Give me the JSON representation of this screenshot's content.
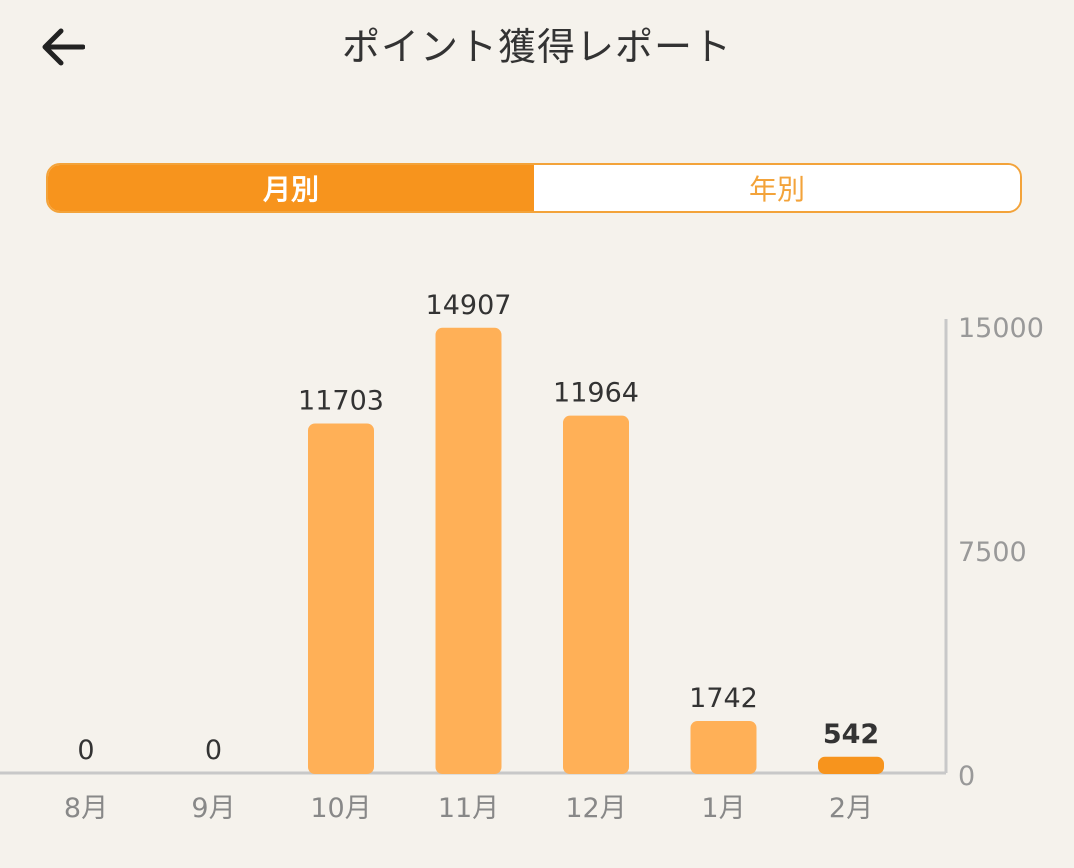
{
  "header": {
    "title": "ポイント獲得レポート",
    "back_icon": "arrow-left-icon"
  },
  "toggle": {
    "monthly_label": "月別",
    "yearly_label": "年別",
    "selected": "monthly"
  },
  "colors": {
    "background": "#f5f2ec",
    "bar": "#ffb057",
    "bar_highlight": "#f7941d",
    "axis": "#c8c8c8",
    "accent": "#f7941d"
  },
  "chart_data": {
    "type": "bar",
    "categories": [
      "8月",
      "9月",
      "10月",
      "11月",
      "12月",
      "1月",
      "2月"
    ],
    "values": [
      0,
      0,
      11703,
      14907,
      11964,
      1742,
      542
    ],
    "highlight_index": 6,
    "y_ticks": [
      "15000",
      "7500",
      "0"
    ],
    "ylim": [
      0,
      15000
    ],
    "y_axis_position": "right",
    "grid": false,
    "show_value_labels": true
  }
}
